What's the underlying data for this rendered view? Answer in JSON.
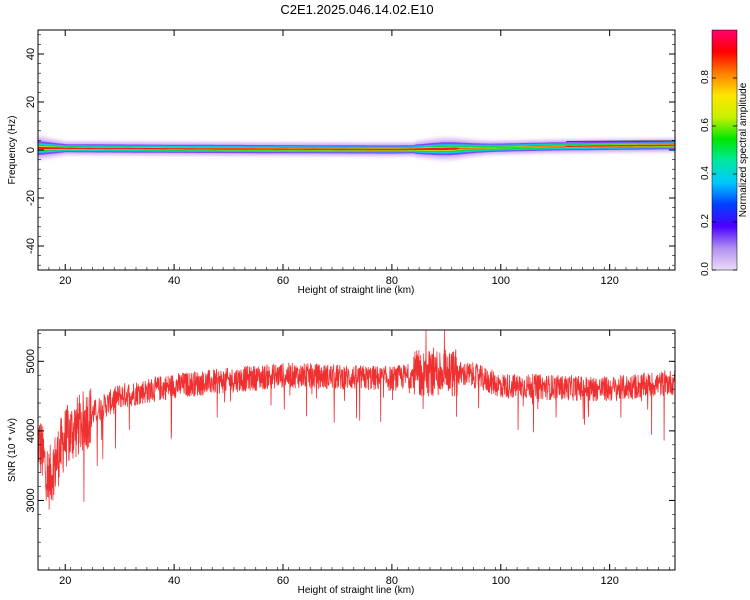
{
  "figure": {
    "title": "C2E1.2025.046.14.02.E10"
  },
  "colors": {
    "snr_line": "#f03030",
    "colorbar": [
      "#ecdcf7",
      "#b090f0",
      "#4a00ff",
      "#0040ff",
      "#00c8ff",
      "#00e8a0",
      "#00e600",
      "#c8f000",
      "#ffe600",
      "#ff8000",
      "#ff0000",
      "#ff0070"
    ]
  },
  "chart_data": [
    {
      "type": "heatmap",
      "xlabel": "Height of straight line (km)",
      "ylabel": "Frequency (Hz)",
      "xlim": [
        15,
        132
      ],
      "ylim": [
        -50,
        50
      ],
      "xticks": [
        20,
        40,
        60,
        80,
        100,
        120
      ],
      "yticks": [
        -40,
        -20,
        0,
        20,
        40
      ],
      "band_center_hz": [
        {
          "x": 15,
          "y": 0.8
        },
        {
          "x": 40,
          "y": 0.5
        },
        {
          "x": 80,
          "y": 0.2
        },
        {
          "x": 90,
          "y": 0.5
        },
        {
          "x": 110,
          "y": 1.5
        },
        {
          "x": 132,
          "y": 2.0
        }
      ],
      "colorbar": {
        "label": "Normalized spectral amplitude",
        "range": [
          0.0,
          1.0
        ],
        "ticks": [
          "0.0",
          "0.2",
          "0.4",
          "0.6",
          "0.8"
        ]
      }
    },
    {
      "type": "line",
      "xlabel": "Height of straight line (km)",
      "ylabel": "SNR (10 * v/v)",
      "xlim": [
        15,
        132
      ],
      "ylim": [
        2000,
        5450
      ],
      "xticks": [
        20,
        40,
        60,
        80,
        100,
        120
      ],
      "yticks": [
        3000,
        4000,
        5000
      ],
      "series": [
        {
          "trend": [
            {
              "x": 15,
              "y": 3900
            },
            {
              "x": 17,
              "y": 3300
            },
            {
              "x": 20,
              "y": 3900
            },
            {
              "x": 25,
              "y": 4250
            },
            {
              "x": 30,
              "y": 4500
            },
            {
              "x": 40,
              "y": 4650
            },
            {
              "x": 60,
              "y": 4800
            },
            {
              "x": 80,
              "y": 4750
            },
            {
              "x": 88,
              "y": 4850
            },
            {
              "x": 95,
              "y": 4800
            },
            {
              "x": 100,
              "y": 4650
            },
            {
              "x": 120,
              "y": 4600
            },
            {
              "x": 132,
              "y": 4700
            }
          ]
        }
      ]
    }
  ]
}
